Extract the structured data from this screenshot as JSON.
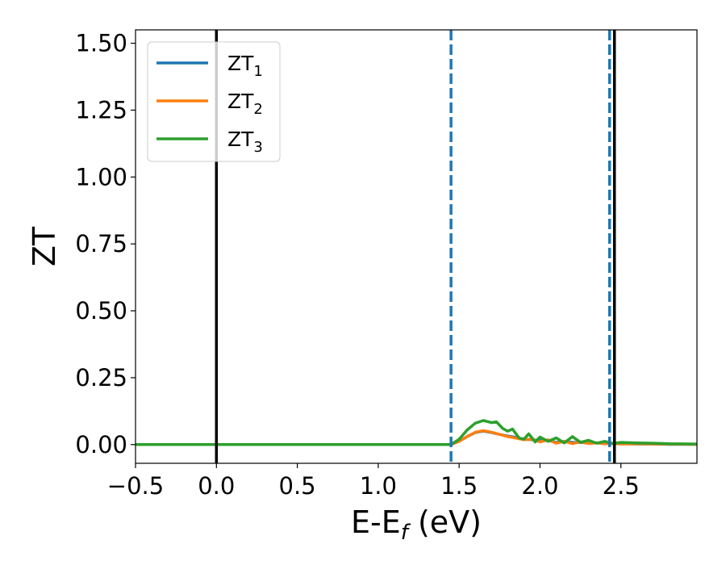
{
  "chart_data": {
    "type": "line",
    "xlabel": {
      "main": "E-E",
      "sub": "f",
      "suffix": " (eV)"
    },
    "ylabel": "ZT",
    "xlim": [
      -0.5,
      2.97
    ],
    "ylim": [
      -0.07,
      1.55
    ],
    "x_ticks": [
      -0.5,
      0.0,
      0.5,
      1.0,
      1.5,
      2.0,
      2.5
    ],
    "x_tick_labels": [
      "−0.5",
      "0.0",
      "0.5",
      "1.0",
      "1.5",
      "2.0",
      "2.5"
    ],
    "y_ticks": [
      0.0,
      0.25,
      0.5,
      0.75,
      1.0,
      1.25,
      1.5
    ],
    "y_tick_labels": [
      "0.00",
      "0.25",
      "0.50",
      "0.75",
      "1.00",
      "1.25",
      "1.50"
    ],
    "legend_position": "top-left",
    "grid": false,
    "vertical_lines": [
      {
        "x": 0.0,
        "style": "solid",
        "color": "#000000"
      },
      {
        "x": 2.46,
        "style": "solid",
        "color": "#000000"
      },
      {
        "x": 1.45,
        "style": "dashed",
        "color": "#1f77b4"
      },
      {
        "x": 2.43,
        "style": "dashed",
        "color": "#1f77b4"
      }
    ],
    "series": [
      {
        "name": "ZT",
        "sub": "1",
        "color": "#1f77b4",
        "x": [
          -0.5,
          1.45,
          1.5,
          1.55,
          1.6,
          1.65,
          1.7,
          1.75,
          1.8,
          1.85,
          1.9,
          1.95,
          2.0,
          2.05,
          2.1,
          2.15,
          2.2,
          2.25,
          2.3,
          2.35,
          2.4,
          2.45,
          2.5,
          2.6,
          2.7,
          2.8,
          2.97
        ],
        "y": [
          0.0,
          0.0,
          0.012,
          0.03,
          0.045,
          0.05,
          0.045,
          0.038,
          0.032,
          0.027,
          0.02,
          0.018,
          0.015,
          0.015,
          0.008,
          0.012,
          0.008,
          0.008,
          0.006,
          0.006,
          0.005,
          0.004,
          0.003,
          0.002,
          0.002,
          0.001,
          0.001
        ]
      },
      {
        "name": "ZT",
        "sub": "2",
        "color": "#ff7f0e",
        "x": [
          -0.5,
          1.45,
          1.5,
          1.55,
          1.6,
          1.65,
          1.7,
          1.75,
          1.8,
          1.85,
          1.9,
          1.95,
          2.0,
          2.05,
          2.1,
          2.15,
          2.2,
          2.25,
          2.3,
          2.35,
          2.4,
          2.45,
          2.5,
          2.6,
          2.7,
          2.8,
          2.97
        ],
        "y": [
          0.0,
          0.0,
          0.012,
          0.03,
          0.046,
          0.052,
          0.046,
          0.038,
          0.03,
          0.024,
          0.018,
          0.02,
          0.01,
          0.018,
          0.005,
          0.012,
          0.004,
          0.01,
          0.004,
          0.006,
          0.003,
          0.004,
          0.002,
          0.003,
          0.002,
          0.002,
          0.001
        ]
      },
      {
        "name": "ZT",
        "sub": "3",
        "color": "#2ca02c",
        "x": [
          -0.5,
          1.45,
          1.5,
          1.55,
          1.6,
          1.65,
          1.7,
          1.73,
          1.77,
          1.8,
          1.83,
          1.87,
          1.9,
          1.93,
          1.97,
          2.0,
          2.05,
          2.1,
          2.15,
          2.2,
          2.25,
          2.3,
          2.35,
          2.4,
          2.45,
          2.5,
          2.6,
          2.7,
          2.8,
          2.97
        ],
        "y": [
          0.0,
          0.0,
          0.02,
          0.055,
          0.08,
          0.09,
          0.082,
          0.085,
          0.06,
          0.05,
          0.058,
          0.025,
          0.02,
          0.04,
          0.01,
          0.028,
          0.012,
          0.025,
          0.006,
          0.03,
          0.008,
          0.016,
          0.005,
          0.012,
          0.004,
          0.008,
          0.006,
          0.005,
          0.003,
          0.002
        ]
      }
    ]
  }
}
